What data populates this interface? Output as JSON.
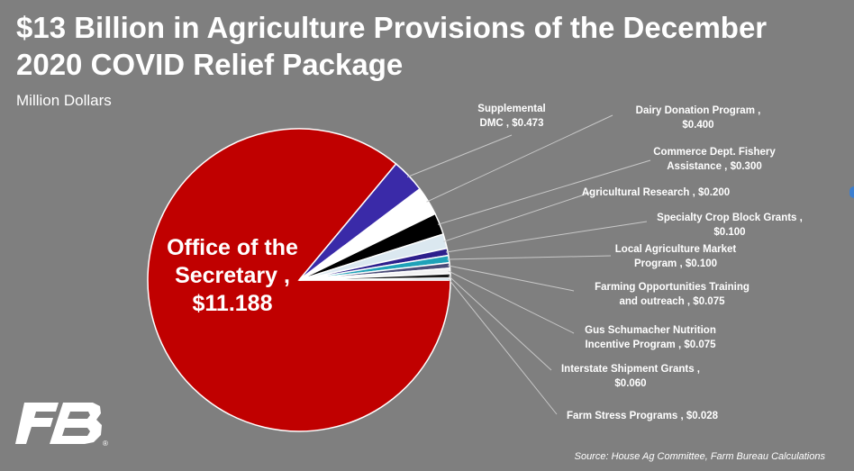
{
  "header": {
    "title_line1": "$13 Billion in Agriculture Provisions of the December",
    "title_line2": "2020 COVID Relief Package",
    "subtitle": "Million Dollars"
  },
  "footer": {
    "source": "Source: House Ag Committee, Farm Bureau Calculations"
  },
  "logo": {
    "name": "farm-bureau-logo",
    "mark": "FB",
    "registered": "®"
  },
  "chart_data": {
    "type": "pie",
    "title": "$13 Billion in Agriculture Provisions of the December 2020 COVID Relief Package",
    "unit": "Million Dollars",
    "slices": [
      {
        "name": "Office of the Secretary",
        "value": 11.188,
        "value_label": "$11.188",
        "color": "#c00000",
        "label_lines": [
          "Office of the",
          "Secretary ,",
          "$11.188"
        ]
      },
      {
        "name": "Supplemental DMC",
        "value": 0.473,
        "value_label": "$0.473",
        "color": "#3a2aa8",
        "label_lines": [
          "Supplemental",
          "DMC ,  $0.473"
        ]
      },
      {
        "name": "Dairy Donation Program",
        "value": 0.4,
        "value_label": "$0.400",
        "color": "#ffffff",
        "label_lines": [
          "Dairy Donation Program ,",
          "$0.400"
        ]
      },
      {
        "name": "Commerce Dept. Fishery Assistance",
        "value": 0.3,
        "value_label": "$0.300",
        "color": "#000000",
        "label_lines": [
          "Commerce Dept. Fishery",
          "Assistance ,  $0.300"
        ]
      },
      {
        "name": "Agricultural Research",
        "value": 0.2,
        "value_label": "$0.200",
        "color": "#dbe8f0",
        "label_lines": [
          "Agricultural Research ,  $0.200"
        ]
      },
      {
        "name": "Specialty Crop Block Grants",
        "value": 0.1,
        "value_label": "$0.100",
        "color": "#2d1f8c",
        "label_lines": [
          "Specialty Crop Block Grants ,",
          "$0.100"
        ]
      },
      {
        "name": "Local Agriculture Market Program",
        "value": 0.1,
        "value_label": "$0.100",
        "color": "#1fa2b8",
        "label_lines": [
          "Local Agriculture Market",
          "Program ,  $0.100"
        ]
      },
      {
        "name": "Farming Opportunities Training and outreach",
        "value": 0.075,
        "value_label": "$0.075",
        "color": "#4b4b78",
        "label_lines": [
          "Farming Opportunities Training",
          "and outreach ,  $0.075"
        ]
      },
      {
        "name": "Gus Schumacher Nutrition Incentive Program",
        "value": 0.075,
        "value_label": "$0.075",
        "color": "#f2f2f2",
        "label_lines": [
          "Gus Schumacher Nutrition",
          "Incentive Program ,  $0.075"
        ]
      },
      {
        "name": "Interstate Shipment Grants",
        "value": 0.06,
        "value_label": "$0.060",
        "color": "#1a1a1a",
        "label_lines": [
          "Interstate Shipment Grants ,",
          "$0.060"
        ]
      },
      {
        "name": "Farm Stress Programs",
        "value": 0.028,
        "value_label": "$0.028",
        "color": "#8fb3c9",
        "label_lines": [
          "Farm Stress Programs ,  $0.028"
        ]
      }
    ]
  }
}
